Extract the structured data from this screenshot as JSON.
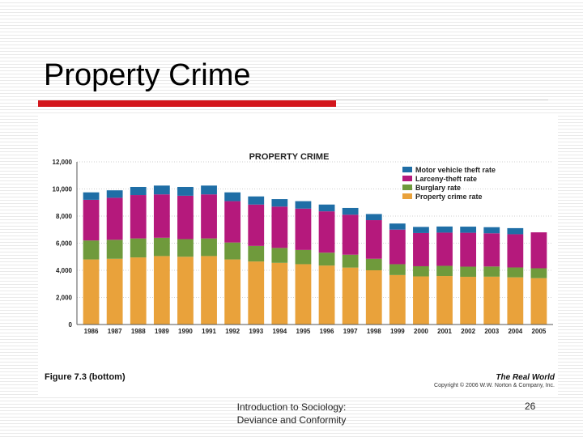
{
  "slide": {
    "title": "Property Crime",
    "footer_line1": "Introduction to Sociology:",
    "footer_line2": "Deviance and Conformity",
    "page_number": "26"
  },
  "figure": {
    "caption": "Figure 7.3 (bottom)",
    "brand": "The Real World",
    "copyright": "Copyright © 2006 W.W. Norton & Company, Inc."
  },
  "colors": {
    "property": "#e9a23b",
    "burglary": "#6f9a3c",
    "larceny": "#b5197c",
    "motor": "#1f6ea6",
    "accent_red": "#d3161c"
  },
  "chart_data": {
    "type": "bar",
    "stacked": true,
    "title": "PROPERTY CRIME",
    "xlabel": "",
    "ylabel": "",
    "ylim": [
      0,
      12000
    ],
    "yticks": [
      0,
      2000,
      4000,
      6000,
      8000,
      10000,
      12000
    ],
    "ytick_labels": [
      "0",
      "2,000",
      "4,000",
      "6,000",
      "8,000",
      "10,000",
      "12,000"
    ],
    "grid": true,
    "legend_position": "top-right",
    "categories": [
      "1986",
      "1987",
      "1988",
      "1989",
      "1990",
      "1991",
      "1992",
      "1993",
      "1994",
      "1995",
      "1996",
      "1997",
      "1998",
      "1999",
      "2000",
      "2001",
      "2002",
      "2003",
      "2004",
      "2005"
    ],
    "series": [
      {
        "name": "Property crime rate",
        "color_key": "property",
        "values": [
          4800,
          4850,
          4950,
          5050,
          5000,
          5050,
          4800,
          4650,
          4550,
          4450,
          4350,
          4200,
          4000,
          3650,
          3550,
          3580,
          3520,
          3530,
          3480,
          3420
        ]
      },
      {
        "name": "Burglary rate",
        "color_key": "burglary",
        "values": [
          1400,
          1400,
          1400,
          1350,
          1300,
          1300,
          1250,
          1150,
          1100,
          1050,
          950,
          950,
          850,
          800,
          750,
          750,
          750,
          750,
          730,
          730
        ]
      },
      {
        "name": "Larceny-theft rate",
        "color_key": "larceny",
        "values": [
          3000,
          3100,
          3200,
          3200,
          3200,
          3250,
          3050,
          3050,
          3050,
          3050,
          3050,
          2950,
          2850,
          2550,
          2450,
          2450,
          2500,
          2450,
          2450,
          2650
        ]
      },
      {
        "name": "Motor vehicle theft rate",
        "color_key": "motor",
        "values": [
          550,
          550,
          600,
          650,
          650,
          650,
          650,
          600,
          550,
          550,
          500,
          500,
          450,
          450,
          450,
          450,
          450,
          450,
          450,
          0
        ]
      }
    ],
    "legend": [
      "Motor vehicle theft rate",
      "Larceny-theft rate",
      "Burglary rate",
      "Property crime rate"
    ]
  }
}
